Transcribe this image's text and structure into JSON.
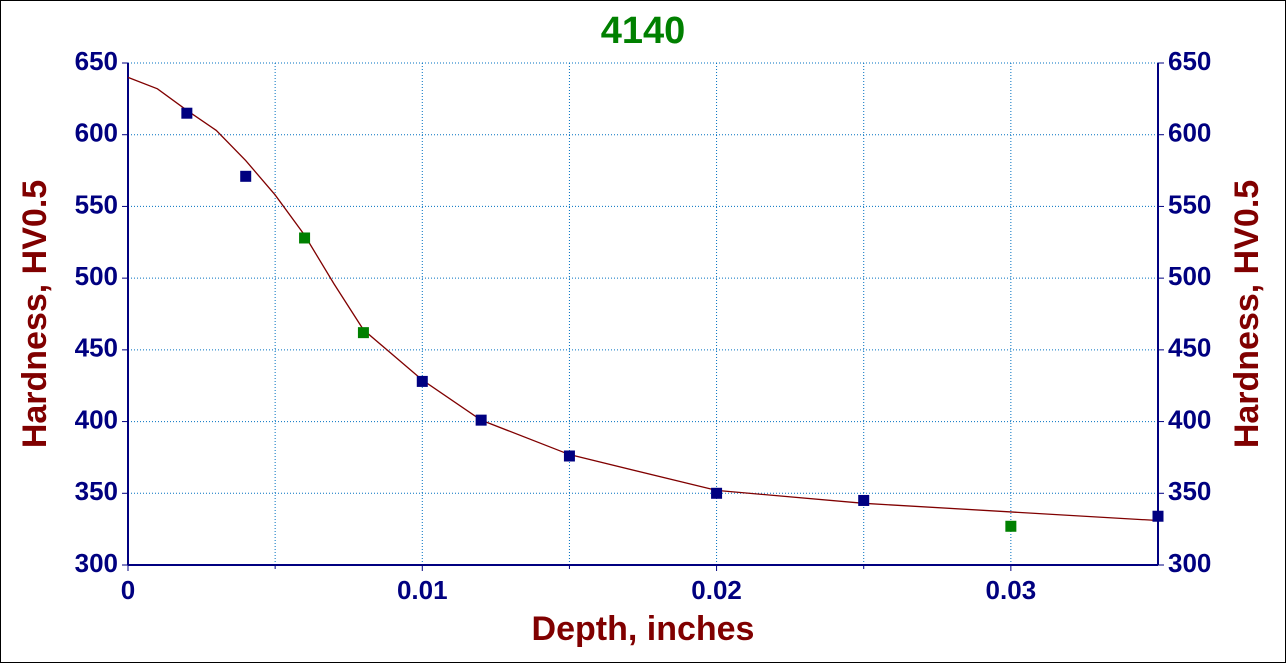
{
  "chart_data": {
    "type": "scatter",
    "title": "4140",
    "title_color": "#008000",
    "xlabel": "Depth, inches",
    "ylabel": "Hardness, HV0.5",
    "y2label": "Hardness, HV0.5",
    "xlim": [
      0,
      0.035
    ],
    "xticks": [
      0,
      0.01,
      0.02,
      0.03
    ],
    "xgrid": [
      0.005,
      0.015,
      0.025
    ],
    "ylim": [
      300,
      650
    ],
    "yticks": [
      300,
      350,
      400,
      450,
      500,
      550,
      600,
      650
    ],
    "y2lim": [
      300,
      650
    ],
    "y2ticks": [
      300,
      350,
      400,
      450,
      500,
      550,
      600,
      650
    ],
    "grid": true,
    "series": [
      {
        "mode": "line",
        "color": "#800000",
        "x": [
          0,
          0.001,
          0.002,
          0.003,
          0.004,
          0.005,
          0.006,
          0.007,
          0.008,
          0.01,
          0.012,
          0.015,
          0.02,
          0.025,
          0.03,
          0.035
        ],
        "values": [
          640,
          632,
          617,
          603,
          582,
          558,
          530,
          496,
          464,
          429,
          401,
          377,
          352,
          343,
          337,
          331
        ]
      },
      {
        "mode": "markers",
        "color": "#000080",
        "x": [
          0.002,
          0.004,
          0.01,
          0.012,
          0.015,
          0.02,
          0.025,
          0.035
        ],
        "values": [
          615,
          571,
          428,
          401,
          376,
          350,
          345,
          334
        ]
      },
      {
        "mode": "markers",
        "color": "#008000",
        "x": [
          0.006,
          0.008,
          0.03
        ],
        "values": [
          528,
          462,
          327
        ]
      }
    ]
  }
}
